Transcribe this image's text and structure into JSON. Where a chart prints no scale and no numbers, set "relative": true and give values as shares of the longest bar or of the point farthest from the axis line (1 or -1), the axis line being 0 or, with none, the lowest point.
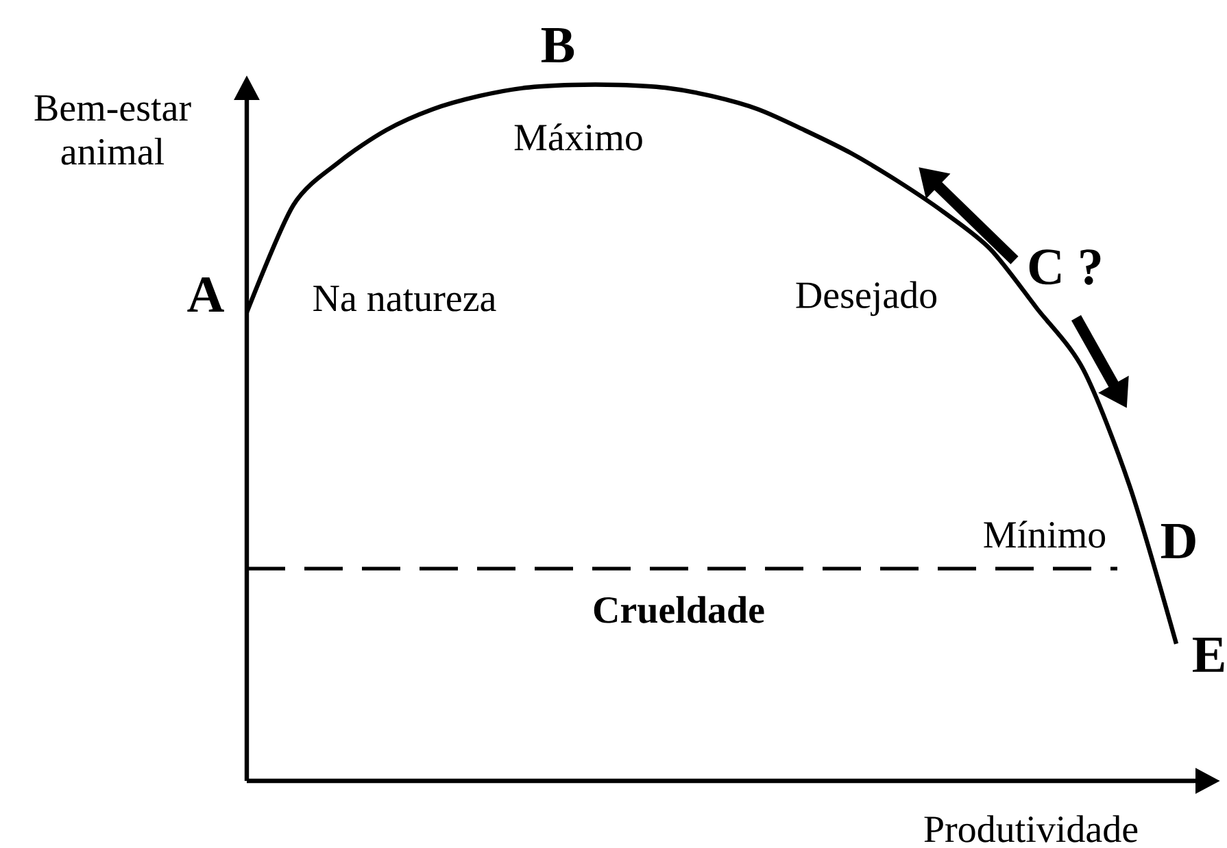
{
  "chart_data": {
    "type": "line",
    "relative": true,
    "xlabel": "Produtividade",
    "ylabel": "Bem-estar animal",
    "line_style": "solid",
    "categories": [
      null,
      null,
      null,
      null,
      null,
      null,
      null,
      null,
      null,
      null,
      null,
      null,
      null,
      null,
      null,
      null,
      null,
      null,
      null,
      null,
      null
    ],
    "series": [
      {
        "color": "#000000",
        "values": [
          0.673,
          0.827,
          0.89,
          0.935,
          0.965,
          0.984,
          0.996,
          1,
          1,
          0.996,
          0.984,
          0.965,
          0.935,
          0.902,
          0.862,
          0.817,
          0.764,
          0.679,
          0.591,
          0.423,
          0.197
        ]
      }
    ],
    "ref_lines": [
      {
        "axis": "y",
        "value": 0.305,
        "label": "Crueldade",
        "color": "#000000",
        "line_style": "dashed"
      }
    ],
    "annotations": [
      "A",
      "B",
      "C ?",
      "D",
      "E",
      "Na natureza",
      "Máximo",
      "Desejado",
      "Mínimo"
    ]
  }
}
